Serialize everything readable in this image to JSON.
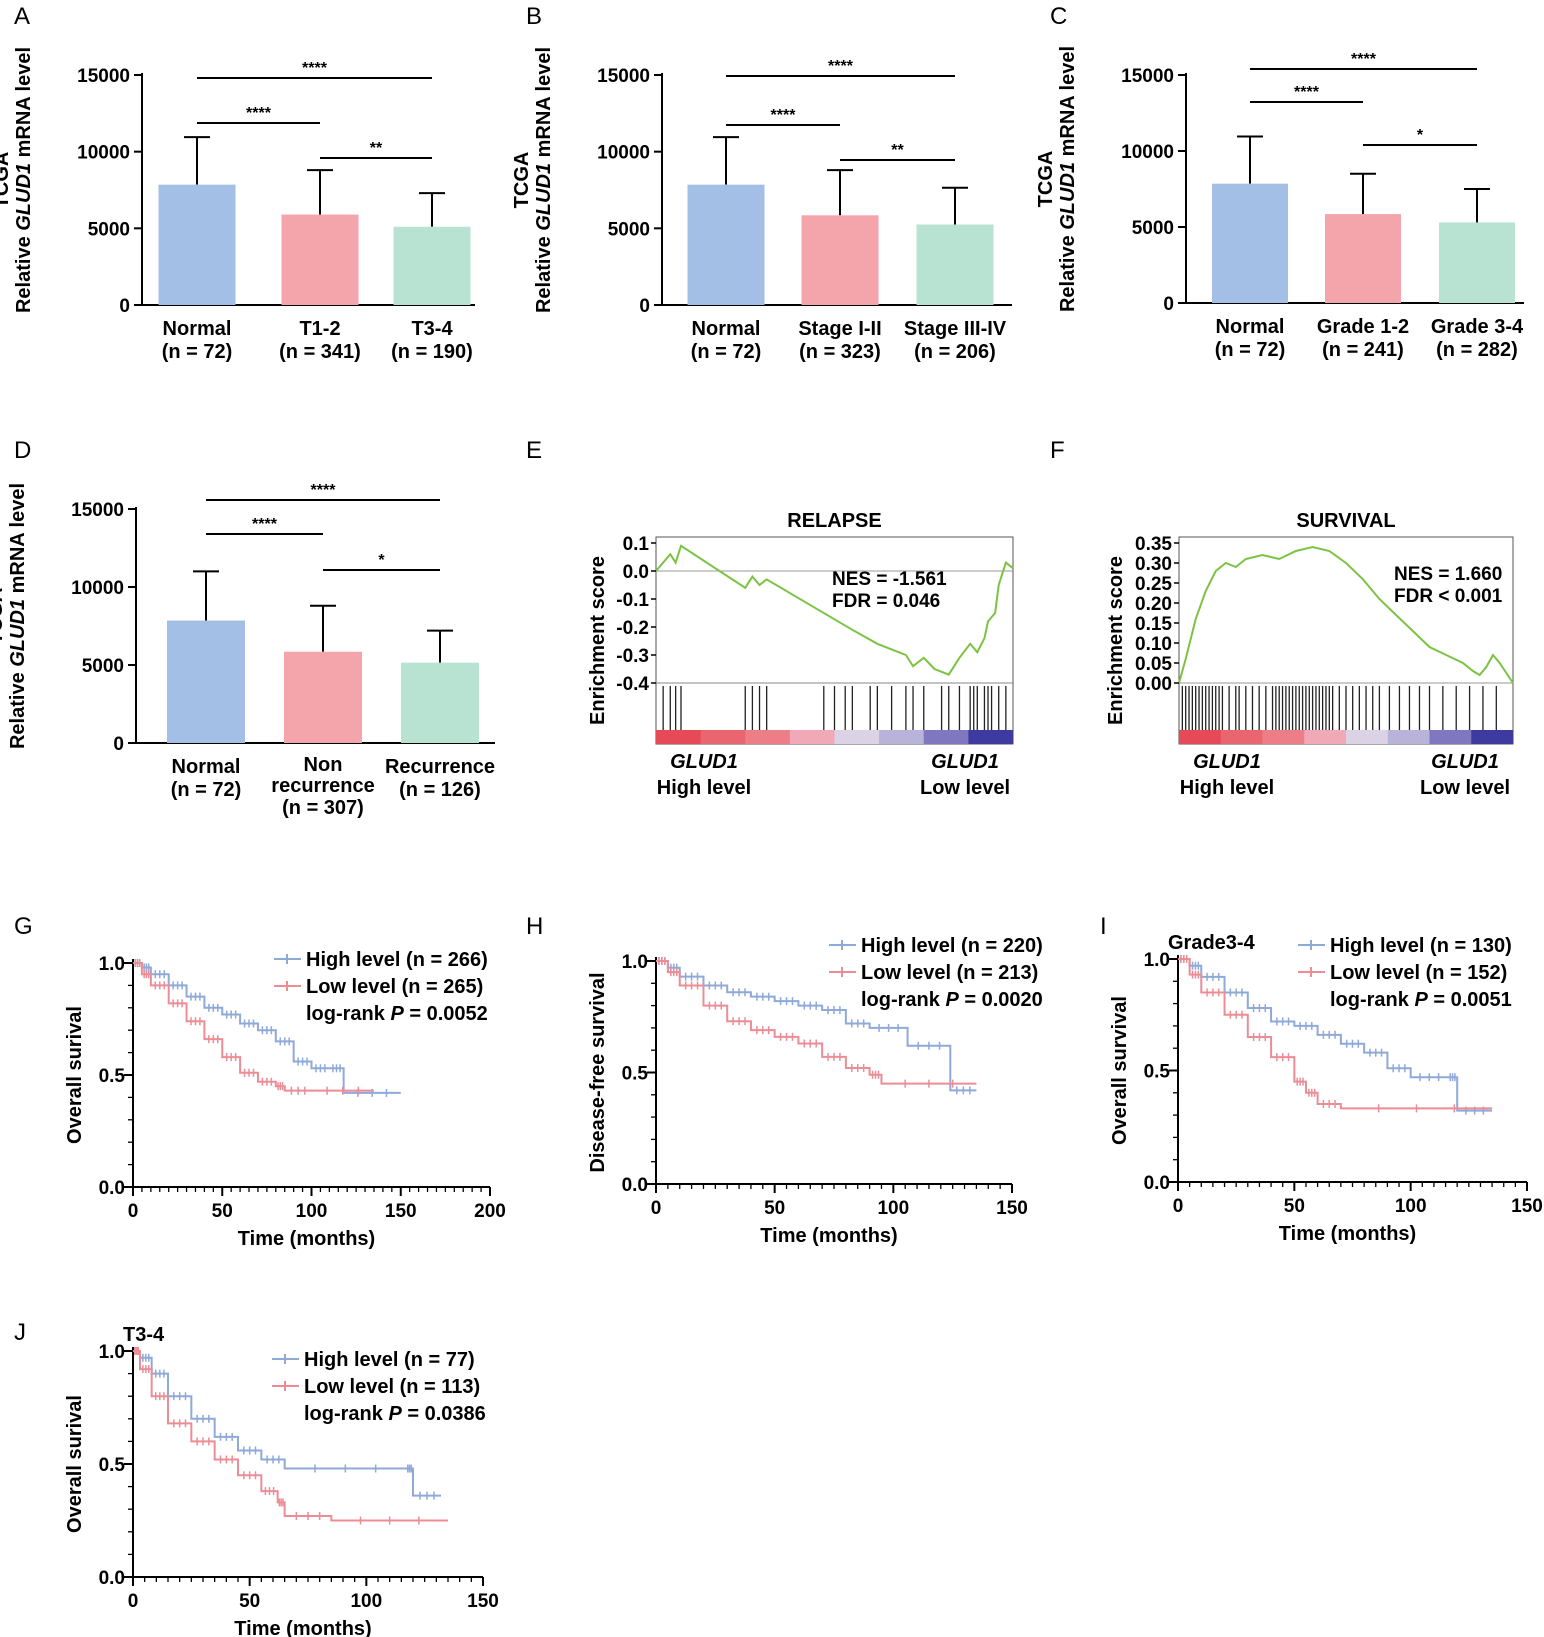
{
  "figure": {
    "colors": {
      "blue": "#a4bfe6",
      "pink": "#f4a5ab",
      "green": "#b8e2d2",
      "gsea_line": "#7cc243",
      "km_high": "#8fa9d9",
      "km_low": "#ec8d96"
    }
  },
  "chart_data": [
    {
      "panel": "A",
      "type": "bar",
      "ylabel_prefix": "TCGA",
      "ylabel_a": "Relative ",
      "ylabel_gene": "GLUD1",
      "ylabel_b": " mRNA level",
      "yticks": [
        "0",
        "5000",
        "10000",
        "15000"
      ],
      "ylim": [
        0,
        15000
      ],
      "categories": [
        "Normal",
        "T1-2",
        "T3-4"
      ],
      "n_labels": [
        "(n = 72)",
        "(n = 341)",
        "(n = 190)"
      ],
      "values": [
        7850,
        5900,
        5100
      ],
      "errors": [
        3100,
        2900,
        2200
      ],
      "bar_colors": [
        "blue",
        "pink",
        "green"
      ],
      "comparisons": [
        {
          "pair": [
            0,
            1
          ],
          "label": "****"
        },
        {
          "pair": [
            1,
            2
          ],
          "label": "**"
        },
        {
          "pair": [
            0,
            2
          ],
          "label": "****"
        }
      ]
    },
    {
      "panel": "B",
      "type": "bar",
      "ylabel_prefix": "TCGA",
      "ylabel_a": "Relative ",
      "ylabel_gene": "GLUD1",
      "ylabel_b": " mRNA level",
      "yticks": [
        "0",
        "5000",
        "10000",
        "15000"
      ],
      "ylim": [
        0,
        15000
      ],
      "categories": [
        "Normal",
        "Stage I-II",
        "Stage III-IV"
      ],
      "n_labels": [
        "(n = 72)",
        "(n = 323)",
        "(n = 206)"
      ],
      "values": [
        7850,
        5850,
        5250
      ],
      "errors": [
        3100,
        2950,
        2400
      ],
      "bar_colors": [
        "blue",
        "pink",
        "green"
      ],
      "comparisons": [
        {
          "pair": [
            0,
            1
          ],
          "label": "****"
        },
        {
          "pair": [
            1,
            2
          ],
          "label": "**"
        },
        {
          "pair": [
            0,
            2
          ],
          "label": "****"
        }
      ]
    },
    {
      "panel": "C",
      "type": "bar",
      "ylabel_prefix": "TCGA",
      "ylabel_a": "Relative ",
      "ylabel_gene": "GLUD1",
      "ylabel_b": " mRNA level",
      "yticks": [
        "0",
        "5000",
        "10000",
        "15000"
      ],
      "ylim": [
        0,
        15000
      ],
      "categories": [
        "Normal",
        "Grade 1-2",
        "Grade 3-4"
      ],
      "n_labels": [
        "(n = 72)",
        "(n = 241)",
        "(n = 282)"
      ],
      "values": [
        7850,
        5850,
        5300
      ],
      "errors": [
        3100,
        2650,
        2200
      ],
      "bar_colors": [
        "blue",
        "pink",
        "green"
      ],
      "comparisons": [
        {
          "pair": [
            0,
            1
          ],
          "label": "****"
        },
        {
          "pair": [
            1,
            2
          ],
          "label": "*"
        },
        {
          "pair": [
            0,
            2
          ],
          "label": "****"
        }
      ]
    },
    {
      "panel": "D",
      "type": "bar",
      "ylabel_prefix": "TCGA",
      "ylabel_a": "Relative ",
      "ylabel_gene": "GLUD1",
      "ylabel_b": " mRNA level",
      "yticks": [
        "0",
        "5000",
        "10000",
        "15000"
      ],
      "ylim": [
        0,
        15000
      ],
      "categories": [
        "Normal",
        "Non\nrecurrence",
        "Recurrence"
      ],
      "n_labels": [
        "(n = 72)",
        "(n = 307)",
        "(n = 126)"
      ],
      "values": [
        7850,
        5850,
        5150
      ],
      "errors": [
        3150,
        2950,
        2050
      ],
      "bar_colors": [
        "blue",
        "pink",
        "green"
      ],
      "comparisons": [
        {
          "pair": [
            0,
            1
          ],
          "label": "****"
        },
        {
          "pair": [
            1,
            2
          ],
          "label": "*"
        },
        {
          "pair": [
            0,
            2
          ],
          "label": "****"
        }
      ]
    },
    {
      "panel": "E",
      "type": "line",
      "subtype": "gsea",
      "title": "RELAPSE",
      "ylabel": "Enrichment score",
      "yticks": [
        "0.1",
        "0.0",
        "-0.1",
        "-0.2",
        "-0.3",
        "-0.4"
      ],
      "ylim": [
        -0.4,
        0.1
      ],
      "stats": [
        "NES = -1.561",
        "FDR = 0.046"
      ],
      "x_left_gene": "GLUD1",
      "x_left": "High level",
      "x_right_gene": "GLUD1",
      "x_right": "Low level",
      "x": [
        0,
        0.04,
        0.055,
        0.07,
        0.25,
        0.27,
        0.29,
        0.31,
        0.55,
        0.62,
        0.66,
        0.7,
        0.72,
        0.75,
        0.78,
        0.82,
        0.85,
        0.88,
        0.9,
        0.92,
        0.93,
        0.95,
        0.96,
        0.98,
        1.0
      ],
      "y": [
        0.0,
        0.06,
        0.03,
        0.09,
        -0.06,
        -0.02,
        -0.05,
        -0.03,
        -0.21,
        -0.26,
        -0.28,
        -0.3,
        -0.34,
        -0.31,
        -0.35,
        -0.37,
        -0.31,
        -0.26,
        -0.29,
        -0.24,
        -0.18,
        -0.15,
        -0.05,
        0.03,
        0.01
      ],
      "hits": [
        0.02,
        0.04,
        0.055,
        0.07,
        0.25,
        0.27,
        0.29,
        0.31,
        0.47,
        0.5,
        0.53,
        0.55,
        0.6,
        0.62,
        0.66,
        0.7,
        0.72,
        0.75,
        0.8,
        0.82,
        0.85,
        0.88,
        0.89,
        0.9,
        0.92,
        0.93,
        0.94,
        0.96,
        0.98
      ],
      "rank_colors": [
        "#e64a57",
        "#e96570",
        "#ed7e88",
        "#f1a9b8",
        "#dcd2e6",
        "#b9b2d9",
        "#7f78c0",
        "#3d3aa0"
      ]
    },
    {
      "panel": "F",
      "type": "line",
      "subtype": "gsea",
      "title": "SURVIVAL",
      "ylabel": "Enrichment score",
      "yticks": [
        "0.35",
        "0.30",
        "0.25",
        "0.20",
        "0.15",
        "0.10",
        "0.05",
        "0.00"
      ],
      "ylim": [
        0,
        0.35
      ],
      "stats": [
        "NES = 1.660",
        "FDR < 0.001"
      ],
      "x_left_gene": "GLUD1",
      "x_left": "High level",
      "x_right_gene": "GLUD1",
      "x_right": "Low level",
      "x": [
        0,
        0.02,
        0.05,
        0.08,
        0.11,
        0.14,
        0.17,
        0.2,
        0.25,
        0.3,
        0.35,
        0.4,
        0.45,
        0.5,
        0.55,
        0.6,
        0.65,
        0.7,
        0.75,
        0.8,
        0.85,
        0.88,
        0.9,
        0.92,
        0.94,
        0.96,
        1.0
      ],
      "y": [
        0.0,
        0.06,
        0.16,
        0.23,
        0.28,
        0.3,
        0.29,
        0.31,
        0.32,
        0.31,
        0.33,
        0.34,
        0.33,
        0.3,
        0.26,
        0.21,
        0.17,
        0.13,
        0.09,
        0.07,
        0.05,
        0.03,
        0.02,
        0.04,
        0.07,
        0.05,
        0.0
      ],
      "hits": [
        0.01,
        0.02,
        0.03,
        0.04,
        0.05,
        0.06,
        0.07,
        0.08,
        0.09,
        0.1,
        0.11,
        0.12,
        0.13,
        0.15,
        0.17,
        0.18,
        0.2,
        0.22,
        0.24,
        0.26,
        0.28,
        0.29,
        0.3,
        0.31,
        0.32,
        0.33,
        0.34,
        0.35,
        0.36,
        0.37,
        0.38,
        0.39,
        0.4,
        0.41,
        0.42,
        0.43,
        0.44,
        0.45,
        0.46,
        0.48,
        0.5,
        0.52,
        0.54,
        0.56,
        0.58,
        0.6,
        0.63,
        0.66,
        0.69,
        0.72,
        0.75,
        0.79,
        0.83,
        0.87,
        0.91,
        0.95
      ],
      "rank_colors": [
        "#e64a57",
        "#e96570",
        "#ed7e88",
        "#f1a9b8",
        "#dcd2e6",
        "#b9b2d9",
        "#7f78c0",
        "#3d3aa0"
      ]
    },
    {
      "panel": "G",
      "type": "line",
      "subtype": "kaplan-meier",
      "ylabel": "Overall surival",
      "xlabel": "Time (months)",
      "xticks": [
        "0",
        "50",
        "100",
        "150",
        "200"
      ],
      "xlim": [
        0,
        200
      ],
      "yticks": [
        "0.0",
        "0.5",
        "1.0"
      ],
      "ylim": [
        0,
        1
      ],
      "legend": [
        "High level (n = 266)",
        "Low level (n = 265)"
      ],
      "pvalue_prefix": "log-rank ",
      "pvalue_p": "P",
      "pvalue_value": " = 0.0052",
      "series": [
        {
          "name": "High level",
          "color": "km_high",
          "t": [
            0,
            5,
            10,
            20,
            30,
            40,
            50,
            60,
            70,
            80,
            90,
            100,
            110,
            118,
            150
          ],
          "s": [
            1.0,
            0.98,
            0.95,
            0.9,
            0.85,
            0.8,
            0.77,
            0.73,
            0.7,
            0.65,
            0.56,
            0.53,
            0.53,
            0.42,
            0.42
          ]
        },
        {
          "name": "Low level",
          "color": "km_low",
          "t": [
            0,
            5,
            10,
            20,
            30,
            40,
            50,
            60,
            70,
            80,
            85,
            100,
            135
          ],
          "s": [
            1.0,
            0.95,
            0.9,
            0.82,
            0.74,
            0.66,
            0.58,
            0.51,
            0.47,
            0.45,
            0.43,
            0.43,
            0.43
          ]
        }
      ]
    },
    {
      "panel": "H",
      "type": "line",
      "subtype": "kaplan-meier",
      "ylabel": "Disease-free survival",
      "xlabel": "Time (months)",
      "xticks": [
        "0",
        "50",
        "100",
        "150"
      ],
      "xlim": [
        0,
        150
      ],
      "yticks": [
        "0.0",
        "0.5",
        "1.0"
      ],
      "ylim": [
        0,
        1
      ],
      "legend": [
        "High level (n = 220)",
        "Low level (n = 213)"
      ],
      "pvalue_prefix": "log-rank ",
      "pvalue_p": "P",
      "pvalue_value": " = 0.0020",
      "series": [
        {
          "name": "High level",
          "color": "km_high",
          "t": [
            0,
            5,
            10,
            20,
            30,
            40,
            50,
            60,
            70,
            80,
            90,
            106,
            124,
            135
          ],
          "s": [
            1.0,
            0.97,
            0.93,
            0.89,
            0.86,
            0.84,
            0.82,
            0.8,
            0.78,
            0.72,
            0.7,
            0.62,
            0.42,
            0.42
          ]
        },
        {
          "name": "Low level",
          "color": "km_low",
          "t": [
            0,
            5,
            10,
            20,
            30,
            40,
            50,
            60,
            70,
            80,
            90,
            95,
            135
          ],
          "s": [
            1.0,
            0.95,
            0.89,
            0.8,
            0.73,
            0.69,
            0.66,
            0.63,
            0.57,
            0.52,
            0.49,
            0.45,
            0.45
          ]
        }
      ]
    },
    {
      "panel": "I",
      "type": "line",
      "subtype": "kaplan-meier",
      "title": "Grade3-4",
      "ylabel": "Overall survival",
      "xlabel": "Time (months)",
      "xticks": [
        "0",
        "50",
        "100",
        "150"
      ],
      "xlim": [
        0,
        150
      ],
      "yticks": [
        "0.0",
        "0.5",
        "1.0"
      ],
      "ylim": [
        0,
        1
      ],
      "legend": [
        "High level (n = 130)",
        "Low level (n = 152)"
      ],
      "pvalue_prefix": "log-rank ",
      "pvalue_p": "P",
      "pvalue_value": " = 0.0051",
      "series": [
        {
          "name": "High level",
          "color": "km_high",
          "t": [
            0,
            5,
            10,
            20,
            30,
            40,
            50,
            60,
            70,
            80,
            90,
            100,
            116,
            120,
            135
          ],
          "s": [
            1.0,
            0.97,
            0.92,
            0.85,
            0.78,
            0.72,
            0.7,
            0.66,
            0.62,
            0.58,
            0.51,
            0.47,
            0.47,
            0.32,
            0.32
          ]
        },
        {
          "name": "Low level",
          "color": "km_low",
          "t": [
            0,
            5,
            10,
            20,
            30,
            40,
            50,
            55,
            60,
            70,
            135
          ],
          "s": [
            1.0,
            0.93,
            0.85,
            0.75,
            0.65,
            0.56,
            0.45,
            0.4,
            0.35,
            0.33,
            0.33
          ]
        }
      ]
    },
    {
      "panel": "J",
      "type": "line",
      "subtype": "kaplan-meier",
      "title": "T3-4",
      "ylabel": "Overall surival",
      "xlabel": "Time (months)",
      "xticks": [
        "0",
        "50",
        "100",
        "150"
      ],
      "xlim": [
        0,
        150
      ],
      "yticks": [
        "0.0",
        "0.5",
        "1.0"
      ],
      "ylim": [
        0,
        1
      ],
      "legend": [
        "High level (n = 77)",
        "Low level (n = 113)"
      ],
      "pvalue_prefix": "log-rank ",
      "pvalue_p": "P",
      "pvalue_value": " = 0.0386",
      "series": [
        {
          "name": "High level",
          "color": "km_high",
          "t": [
            0,
            3,
            8,
            15,
            25,
            35,
            45,
            55,
            65,
            117,
            120,
            132
          ],
          "s": [
            1.0,
            0.97,
            0.9,
            0.8,
            0.7,
            0.62,
            0.56,
            0.52,
            0.48,
            0.48,
            0.36,
            0.36
          ]
        },
        {
          "name": "Low level",
          "color": "km_low",
          "t": [
            0,
            3,
            8,
            15,
            25,
            35,
            45,
            55,
            62,
            65,
            85,
            135
          ],
          "s": [
            1.0,
            0.92,
            0.8,
            0.68,
            0.6,
            0.52,
            0.45,
            0.38,
            0.33,
            0.27,
            0.25,
            0.25
          ]
        }
      ]
    }
  ]
}
